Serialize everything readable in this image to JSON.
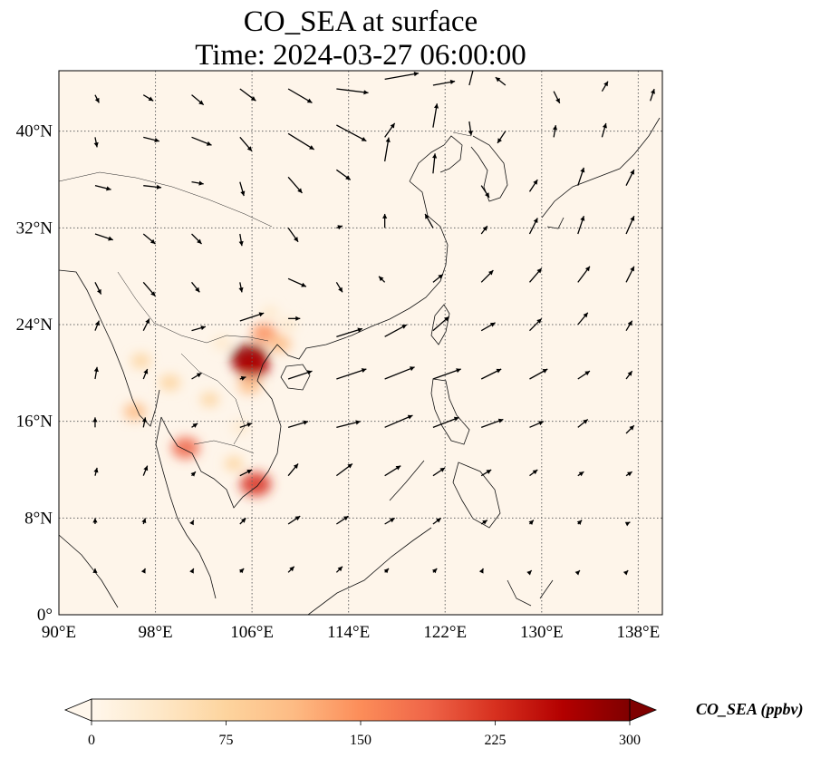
{
  "chart_data": {
    "type": "heatmap",
    "title": "CO_SEA at surface",
    "subtitle": "Time: 2024-03-27 06:00:00",
    "x_ticks": [
      "90°E",
      "98°E",
      "106°E",
      "114°E",
      "122°E",
      "130°E",
      "138°E"
    ],
    "y_ticks": [
      "0°",
      "8°N",
      "16°N",
      "24°N",
      "32°N",
      "40°N"
    ],
    "lon_range": [
      90,
      140
    ],
    "lat_range": [
      0,
      45
    ],
    "grid": true,
    "grid_style": "dotted",
    "colormap": "OrRd",
    "colorbar": {
      "label": "CO_SEA (ppbv)",
      "ticks": [
        "0",
        "75",
        "150",
        "225",
        "300"
      ],
      "range": [
        0,
        300
      ],
      "extend": "both",
      "colors": [
        "#fff7ec",
        "#fee8c8",
        "#fdd49e",
        "#fdbb84",
        "#fc8d59",
        "#ef6548",
        "#d7301f",
        "#b30000",
        "#7f0000"
      ]
    },
    "hotspots": [
      {
        "lon": 105.8,
        "lat": 21.2,
        "value": 300
      },
      {
        "lon": 106.0,
        "lat": 20.6,
        "value": 260
      },
      {
        "lon": 107.0,
        "lat": 23.3,
        "value": 140
      },
      {
        "lon": 108.3,
        "lat": 22.4,
        "value": 110
      },
      {
        "lon": 105.8,
        "lat": 19.0,
        "value": 120
      },
      {
        "lon": 106.3,
        "lat": 10.8,
        "value": 220
      },
      {
        "lon": 100.5,
        "lat": 13.8,
        "value": 180
      },
      {
        "lon": 96.3,
        "lat": 16.8,
        "value": 110
      },
      {
        "lon": 96.8,
        "lat": 21.0,
        "value": 70
      },
      {
        "lon": 99.2,
        "lat": 19.2,
        "value": 90
      },
      {
        "lon": 102.5,
        "lat": 17.8,
        "value": 60
      },
      {
        "lon": 104.5,
        "lat": 12.5,
        "value": 60
      },
      {
        "lon": 103.5,
        "lat": 22.5,
        "value": 50
      },
      {
        "lon": 107.5,
        "lat": 25.0,
        "value": 35
      },
      {
        "lon": 105.0,
        "lat": 15.5,
        "value": 40
      },
      {
        "lon": 109.0,
        "lat": 24.0,
        "value": 40
      }
    ],
    "wind_vectors": [
      {
        "lon": 93,
        "lat": 43,
        "u": 0.2,
        "v": -0.4
      },
      {
        "lon": 97,
        "lat": 43,
        "u": 0.5,
        "v": -0.3
      },
      {
        "lon": 101,
        "lat": 43,
        "u": 0.6,
        "v": -0.5
      },
      {
        "lon": 105,
        "lat": 43.5,
        "u": 0.8,
        "v": -0.6
      },
      {
        "lon": 109,
        "lat": 43.5,
        "u": 1.2,
        "v": -0.7
      },
      {
        "lon": 113,
        "lat": 43.5,
        "u": 1.6,
        "v": -0.2
      },
      {
        "lon": 117,
        "lat": 44.3,
        "u": 1.7,
        "v": 0.3
      },
      {
        "lon": 121,
        "lat": 43.8,
        "u": 1.1,
        "v": 0.2
      },
      {
        "lon": 124,
        "lat": 43.8,
        "u": 0.4,
        "v": 1.6
      },
      {
        "lon": 127,
        "lat": 43.8,
        "u": -0.5,
        "v": 0.4
      },
      {
        "lon": 131,
        "lat": 43.3,
        "u": 0.3,
        "v": -0.6
      },
      {
        "lon": 135,
        "lat": 43.3,
        "u": 0.3,
        "v": 0.5
      },
      {
        "lon": 139,
        "lat": 42.5,
        "u": 0.2,
        "v": 0.6
      },
      {
        "lon": 93,
        "lat": 39.5,
        "u": 0.1,
        "v": -0.5
      },
      {
        "lon": 97,
        "lat": 39.5,
        "u": 0.8,
        "v": -0.2
      },
      {
        "lon": 101,
        "lat": 39.5,
        "u": 1.0,
        "v": -0.4
      },
      {
        "lon": 105,
        "lat": 39.5,
        "u": 0.6,
        "v": -0.7
      },
      {
        "lon": 109,
        "lat": 39.8,
        "u": 1.3,
        "v": -0.8
      },
      {
        "lon": 113,
        "lat": 40.5,
        "u": 1.5,
        "v": -0.8
      },
      {
        "lon": 117,
        "lat": 39.5,
        "u": 0.5,
        "v": 0.7
      },
      {
        "lon": 121,
        "lat": 40.3,
        "u": 0.2,
        "v": 1.2
      },
      {
        "lon": 124,
        "lat": 40.8,
        "u": 0.1,
        "v": -0.7
      },
      {
        "lon": 127,
        "lat": 40.0,
        "u": -0.4,
        "v": -0.6
      },
      {
        "lon": 131,
        "lat": 39.5,
        "u": 0.1,
        "v": 0.6
      },
      {
        "lon": 135,
        "lat": 39.5,
        "u": 0.2,
        "v": 0.7
      },
      {
        "lon": 93,
        "lat": 35.5,
        "u": 0.8,
        "v": -0.2
      },
      {
        "lon": 97,
        "lat": 35.5,
        "u": 0.9,
        "v": -0.1
      },
      {
        "lon": 101,
        "lat": 35.8,
        "u": 0.6,
        "v": -0.1
      },
      {
        "lon": 105,
        "lat": 35.8,
        "u": 0.2,
        "v": -0.7
      },
      {
        "lon": 109,
        "lat": 36.2,
        "u": 0.7,
        "v": -0.8
      },
      {
        "lon": 113,
        "lat": 36.8,
        "u": 0.7,
        "v": -0.5
      },
      {
        "lon": 117,
        "lat": 37.5,
        "u": 0.2,
        "v": 1.2
      },
      {
        "lon": 121,
        "lat": 36.5,
        "u": 0.1,
        "v": 1.0
      },
      {
        "lon": 125,
        "lat": 35.5,
        "u": 0.4,
        "v": -0.6
      },
      {
        "lon": 129,
        "lat": 35.0,
        "u": 0.4,
        "v": 0.6
      },
      {
        "lon": 133,
        "lat": 35.5,
        "u": 0.3,
        "v": 0.9
      },
      {
        "lon": 137,
        "lat": 35.5,
        "u": 0.4,
        "v": 0.8
      },
      {
        "lon": 93,
        "lat": 31.5,
        "u": 0.9,
        "v": -0.3
      },
      {
        "lon": 97,
        "lat": 31.5,
        "u": 0.6,
        "v": -0.5
      },
      {
        "lon": 101,
        "lat": 31.5,
        "u": 0.5,
        "v": -0.5
      },
      {
        "lon": 105,
        "lat": 31.5,
        "u": 0.1,
        "v": -0.6
      },
      {
        "lon": 109,
        "lat": 32.0,
        "u": 0.5,
        "v": -0.7
      },
      {
        "lon": 113,
        "lat": 32.0,
        "u": 0.3,
        "v": 0.1
      },
      {
        "lon": 117,
        "lat": 32.0,
        "u": 0.0,
        "v": 0.7
      },
      {
        "lon": 121,
        "lat": 32.0,
        "u": -0.4,
        "v": 0.7
      },
      {
        "lon": 125,
        "lat": 31.5,
        "u": 0.3,
        "v": 0.4
      },
      {
        "lon": 129,
        "lat": 31.5,
        "u": 0.4,
        "v": 0.8
      },
      {
        "lon": 133,
        "lat": 31.5,
        "u": 0.3,
        "v": 0.9
      },
      {
        "lon": 137,
        "lat": 31.5,
        "u": 0.4,
        "v": 0.9
      },
      {
        "lon": 93,
        "lat": 27.5,
        "u": 0.3,
        "v": -0.6
      },
      {
        "lon": 97,
        "lat": 27.5,
        "u": 0.6,
        "v": -0.7
      },
      {
        "lon": 101,
        "lat": 27.5,
        "u": 0.4,
        "v": -0.5
      },
      {
        "lon": 105,
        "lat": 27.5,
        "u": 0.1,
        "v": -0.5
      },
      {
        "lon": 109,
        "lat": 27.8,
        "u": 0.9,
        "v": -0.4
      },
      {
        "lon": 113,
        "lat": 27.5,
        "u": 0.3,
        "v": -0.5
      },
      {
        "lon": 117,
        "lat": 27.5,
        "u": -0.3,
        "v": 0.3
      },
      {
        "lon": 121,
        "lat": 27.5,
        "u": 0.5,
        "v": 0.4
      },
      {
        "lon": 125,
        "lat": 27.5,
        "u": 0.6,
        "v": 0.6
      },
      {
        "lon": 129,
        "lat": 27.5,
        "u": 0.6,
        "v": 0.7
      },
      {
        "lon": 133,
        "lat": 27.5,
        "u": 0.6,
        "v": 0.8
      },
      {
        "lon": 137,
        "lat": 27.5,
        "u": 0.4,
        "v": 0.8
      },
      {
        "lon": 93,
        "lat": 23.5,
        "u": 0.2,
        "v": 0.5
      },
      {
        "lon": 97,
        "lat": 23.5,
        "u": 0.3,
        "v": 0.6
      },
      {
        "lon": 101,
        "lat": 23.5,
        "u": 0.7,
        "v": 0.2
      },
      {
        "lon": 105,
        "lat": 24.3,
        "u": 1.2,
        "v": 0.4
      },
      {
        "lon": 109,
        "lat": 24.5,
        "u": 0.6,
        "v": 0.0
      },
      {
        "lon": 113,
        "lat": 23.0,
        "u": 1.3,
        "v": 0.4
      },
      {
        "lon": 117,
        "lat": 23.0,
        "u": 1.1,
        "v": 0.6
      },
      {
        "lon": 121,
        "lat": 23.5,
        "u": 0.8,
        "v": 0.7
      },
      {
        "lon": 125,
        "lat": 23.5,
        "u": 0.7,
        "v": 0.4
      },
      {
        "lon": 129,
        "lat": 23.5,
        "u": 0.6,
        "v": 0.6
      },
      {
        "lon": 133,
        "lat": 24.0,
        "u": 0.5,
        "v": 0.6
      },
      {
        "lon": 137,
        "lat": 23.5,
        "u": 0.3,
        "v": 0.5
      },
      {
        "lon": 93,
        "lat": 19.5,
        "u": 0.1,
        "v": 0.6
      },
      {
        "lon": 97,
        "lat": 19.5,
        "u": 0.2,
        "v": 0.5
      },
      {
        "lon": 101,
        "lat": 19.5,
        "u": 0.5,
        "v": 0.3
      },
      {
        "lon": 105,
        "lat": 19.5,
        "u": 0.3,
        "v": 0.1
      },
      {
        "lon": 109,
        "lat": 19.5,
        "u": 1.2,
        "v": 0.4
      },
      {
        "lon": 113,
        "lat": 19.5,
        "u": 1.5,
        "v": 0.5
      },
      {
        "lon": 117,
        "lat": 19.5,
        "u": 1.5,
        "v": 0.6
      },
      {
        "lon": 121,
        "lat": 19.5,
        "u": 1.4,
        "v": 0.5
      },
      {
        "lon": 125,
        "lat": 19.5,
        "u": 1.0,
        "v": 0.5
      },
      {
        "lon": 129,
        "lat": 19.5,
        "u": 0.9,
        "v": 0.5
      },
      {
        "lon": 133,
        "lat": 19.5,
        "u": 0.6,
        "v": 0.4
      },
      {
        "lon": 137,
        "lat": 19.5,
        "u": 0.3,
        "v": 0.4
      },
      {
        "lon": 93,
        "lat": 15.5,
        "u": 0.0,
        "v": 0.5
      },
      {
        "lon": 97,
        "lat": 15.5,
        "u": 0.1,
        "v": 0.5
      },
      {
        "lon": 101,
        "lat": 15.5,
        "u": 0.3,
        "v": 0.2
      },
      {
        "lon": 105,
        "lat": 15.5,
        "u": 0.6,
        "v": 0.2
      },
      {
        "lon": 109,
        "lat": 15.5,
        "u": 1.0,
        "v": 0.3
      },
      {
        "lon": 113,
        "lat": 15.5,
        "u": 1.2,
        "v": 0.3
      },
      {
        "lon": 117,
        "lat": 15.5,
        "u": 1.4,
        "v": 0.6
      },
      {
        "lon": 121,
        "lat": 15.5,
        "u": 1.3,
        "v": 0.5
      },
      {
        "lon": 125,
        "lat": 15.5,
        "u": 1.1,
        "v": 0.4
      },
      {
        "lon": 129,
        "lat": 15.5,
        "u": 0.7,
        "v": 0.3
      },
      {
        "lon": 133,
        "lat": 15.5,
        "u": 0.5,
        "v": 0.4
      },
      {
        "lon": 137,
        "lat": 15.0,
        "u": 0.4,
        "v": 0.4
      },
      {
        "lon": 93,
        "lat": 11.5,
        "u": 0.1,
        "v": 0.4
      },
      {
        "lon": 97,
        "lat": 11.5,
        "u": 0.2,
        "v": 0.5
      },
      {
        "lon": 101,
        "lat": 11.5,
        "u": 0.2,
        "v": 0.2
      },
      {
        "lon": 105,
        "lat": 11.5,
        "u": 0.6,
        "v": 0.3
      },
      {
        "lon": 109,
        "lat": 11.5,
        "u": 0.5,
        "v": 0.6
      },
      {
        "lon": 113,
        "lat": 11.5,
        "u": 0.8,
        "v": 0.6
      },
      {
        "lon": 117,
        "lat": 11.5,
        "u": 0.8,
        "v": 0.5
      },
      {
        "lon": 121,
        "lat": 11.5,
        "u": 0.6,
        "v": 0.4
      },
      {
        "lon": 125,
        "lat": 11.5,
        "u": 0.5,
        "v": 0.3
      },
      {
        "lon": 129,
        "lat": 11.5,
        "u": 0.4,
        "v": 0.3
      },
      {
        "lon": 133,
        "lat": 11.5,
        "u": 0.3,
        "v": 0.2
      },
      {
        "lon": 137,
        "lat": 11.5,
        "u": 0.3,
        "v": 0.2
      },
      {
        "lon": 93,
        "lat": 7.5,
        "u": 0.0,
        "v": 0.3
      },
      {
        "lon": 97,
        "lat": 7.5,
        "u": 0.1,
        "v": 0.3
      },
      {
        "lon": 101,
        "lat": 7.5,
        "u": 0.1,
        "v": 0.2
      },
      {
        "lon": 105,
        "lat": 7.5,
        "u": 0.3,
        "v": 0.3
      },
      {
        "lon": 109,
        "lat": 7.5,
        "u": 0.6,
        "v": 0.4
      },
      {
        "lon": 113,
        "lat": 7.5,
        "u": 0.6,
        "v": 0.4
      },
      {
        "lon": 117,
        "lat": 7.5,
        "u": 0.5,
        "v": 0.3
      },
      {
        "lon": 121,
        "lat": 7.5,
        "u": 0.4,
        "v": 0.3
      },
      {
        "lon": 125,
        "lat": 7.5,
        "u": 0.3,
        "v": 0.2
      },
      {
        "lon": 129,
        "lat": 7.5,
        "u": 0.2,
        "v": 0.2
      },
      {
        "lon": 133,
        "lat": 7.5,
        "u": 0.2,
        "v": 0.2
      },
      {
        "lon": 137,
        "lat": 7.5,
        "u": 0.2,
        "v": 0.1
      },
      {
        "lon": 93,
        "lat": 3.5,
        "u": 0.0,
        "v": 0.2
      },
      {
        "lon": 97,
        "lat": 3.5,
        "u": 0.1,
        "v": 0.2
      },
      {
        "lon": 101,
        "lat": 3.5,
        "u": 0.1,
        "v": 0.2
      },
      {
        "lon": 105,
        "lat": 3.5,
        "u": 0.2,
        "v": 0.2
      },
      {
        "lon": 109,
        "lat": 3.5,
        "u": 0.3,
        "v": 0.3
      },
      {
        "lon": 113,
        "lat": 3.5,
        "u": 0.3,
        "v": 0.3
      },
      {
        "lon": 117,
        "lat": 3.5,
        "u": 0.2,
        "v": 0.2
      },
      {
        "lon": 121,
        "lat": 3.5,
        "u": 0.2,
        "v": 0.2
      },
      {
        "lon": 125,
        "lat": 3.5,
        "u": 0.1,
        "v": 0.2
      },
      {
        "lon": 129,
        "lat": 3.5,
        "u": 0.1,
        "v": 0.1
      },
      {
        "lon": 133,
        "lat": 3.5,
        "u": 0.1,
        "v": 0.1
      },
      {
        "lon": 137,
        "lat": 3.5,
        "u": 0.1,
        "v": 0.1
      }
    ]
  }
}
